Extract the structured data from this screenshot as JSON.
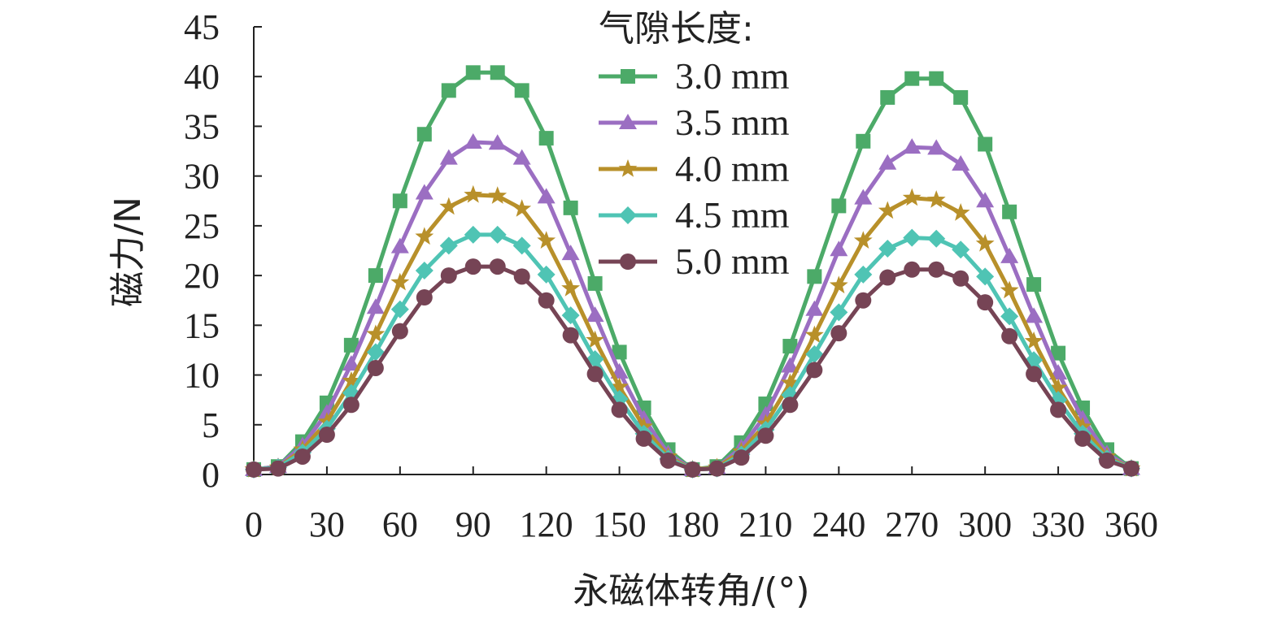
{
  "chart_data": {
    "type": "line",
    "xlabel": "永磁体转角/(°)",
    "ylabel": "磁力/N",
    "xlim": [
      0,
      360
    ],
    "ylim": [
      0,
      45
    ],
    "xticks": [
      "0",
      "30",
      "60",
      "90",
      "120",
      "150",
      "180",
      "210",
      "240",
      "270",
      "300",
      "330",
      "360"
    ],
    "yticks": [
      "0",
      "5",
      "10",
      "15",
      "20",
      "25",
      "30",
      "35",
      "40",
      "45"
    ],
    "grid": false,
    "legend": {
      "title": "气隙长度:",
      "placement": "top-center"
    },
    "x": [
      0,
      10,
      20,
      30,
      40,
      50,
      60,
      70,
      80,
      90,
      100,
      110,
      120,
      130,
      140,
      150,
      160,
      170,
      180,
      190,
      200,
      210,
      220,
      230,
      240,
      250,
      260,
      270,
      280,
      290,
      300,
      310,
      320,
      330,
      340,
      350,
      360
    ],
    "series": [
      {
        "name": "3.0 mm",
        "color": "#4caa68",
        "marker": "square",
        "values": [
          0.5,
          0.8,
          3.3,
          7.2,
          13.0,
          20.0,
          27.5,
          34.2,
          38.6,
          40.4,
          40.4,
          38.6,
          33.8,
          26.8,
          19.2,
          12.3,
          6.7,
          2.5,
          0.5,
          0.8,
          3.2,
          7.1,
          12.9,
          19.9,
          27.0,
          33.5,
          37.9,
          39.8,
          39.8,
          37.9,
          33.2,
          26.4,
          19.1,
          12.2,
          6.7,
          2.5,
          0.6
        ]
      },
      {
        "name": "3.5 mm",
        "color": "#9b6ec2",
        "marker": "triangle",
        "values": [
          0.5,
          0.8,
          2.9,
          6.2,
          11.1,
          16.8,
          22.9,
          28.3,
          31.8,
          33.4,
          33.3,
          31.8,
          27.9,
          22.2,
          16.0,
          10.3,
          5.6,
          2.1,
          0.5,
          0.7,
          2.7,
          6.0,
          10.9,
          16.6,
          22.6,
          27.8,
          31.3,
          32.9,
          32.8,
          31.2,
          27.5,
          21.9,
          15.9,
          10.2,
          5.6,
          2.1,
          0.6
        ]
      },
      {
        "name": "4.0 mm",
        "color": "#b8902a",
        "marker": "star",
        "values": [
          0.5,
          0.7,
          2.5,
          5.3,
          9.4,
          14.1,
          19.3,
          23.9,
          26.9,
          28.1,
          28.0,
          26.7,
          23.5,
          18.7,
          13.5,
          8.8,
          4.8,
          1.8,
          0.5,
          0.7,
          2.3,
          5.1,
          9.2,
          14.0,
          19.0,
          23.5,
          26.5,
          27.8,
          27.6,
          26.3,
          23.2,
          18.5,
          13.4,
          8.7,
          4.8,
          1.8,
          0.6
        ]
      },
      {
        "name": "4.5 mm",
        "color": "#4fc4b4",
        "marker": "diamond",
        "values": [
          0.5,
          0.7,
          2.2,
          4.6,
          8.2,
          12.3,
          16.6,
          20.5,
          23.0,
          24.1,
          24.1,
          23.0,
          20.1,
          16.0,
          11.6,
          7.6,
          4.1,
          1.6,
          0.5,
          0.6,
          2.0,
          4.5,
          8.0,
          12.1,
          16.3,
          20.1,
          22.7,
          23.8,
          23.7,
          22.6,
          19.9,
          15.9,
          11.5,
          7.5,
          4.1,
          1.6,
          0.6
        ]
      },
      {
        "name": "5.0 mm",
        "color": "#764455",
        "marker": "circle",
        "values": [
          0.5,
          0.6,
          1.8,
          4.0,
          7.0,
          10.7,
          14.4,
          17.8,
          20.0,
          20.9,
          20.9,
          19.9,
          17.5,
          14.0,
          10.1,
          6.5,
          3.6,
          1.4,
          0.5,
          0.6,
          1.7,
          3.9,
          7.0,
          10.5,
          14.2,
          17.5,
          19.8,
          20.6,
          20.6,
          19.7,
          17.3,
          13.9,
          10.1,
          6.5,
          3.6,
          1.4,
          0.6
        ]
      }
    ]
  }
}
